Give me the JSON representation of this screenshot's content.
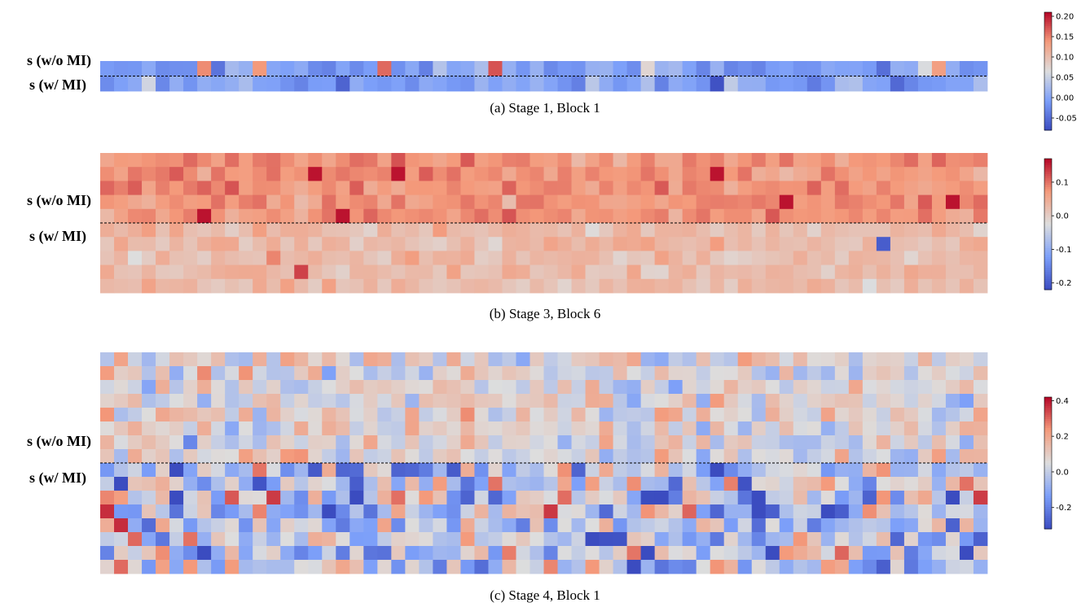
{
  "chart_data": [
    {
      "type": "heatmap",
      "panel": "a",
      "caption": "(a) Stage 1, Block 1",
      "row_labels": [
        "s (w/o MI)",
        "s (w/ MI)"
      ],
      "rows_top": 1,
      "rows_bottom": 1,
      "columns": 64,
      "colorbar": {
        "vmin": -0.08,
        "vmax": 0.21,
        "ticks": [
          -0.05,
          0.0,
          0.05,
          0.1,
          0.15,
          0.2
        ],
        "tick_labels": [
          "-0.05",
          "0.00",
          "0.05",
          "0.10",
          "0.15",
          "0.20"
        ]
      },
      "value_range": {
        "min": -0.07,
        "max": 0.2,
        "bias": 0.0,
        "spread": 0.022,
        "hot_count": 6,
        "seed": 11
      },
      "divider": "dashed line between the two rows"
    },
    {
      "type": "heatmap",
      "panel": "b",
      "caption": "(b) Stage 3, Block 6",
      "row_labels": [
        "s (w/o MI)",
        "s (w/ MI)"
      ],
      "rows_top": 5,
      "rows_bottom": 5,
      "columns": 64,
      "colorbar": {
        "vmin": -0.22,
        "vmax": 0.17,
        "ticks": [
          -0.2,
          -0.1,
          0.0,
          0.1
        ],
        "tick_labels": [
          "-0.2",
          "-0.1",
          "0.0",
          "0.1"
        ]
      },
      "value_range": {
        "top_mean": 0.075,
        "bottom_mean": 0.025,
        "spread": 0.018,
        "seed": 23
      },
      "divider": "dashed line between the two row groups"
    },
    {
      "type": "heatmap",
      "panel": "c",
      "caption": "(c) Stage 4, Block 1",
      "row_labels": [
        "s (w/o MI)",
        "s (w/ MI)"
      ],
      "rows_top": 8,
      "rows_bottom": 8,
      "columns": 64,
      "colorbar": {
        "vmin": -0.32,
        "vmax": 0.42,
        "ticks": [
          -0.2,
          0.0,
          0.2,
          0.4
        ],
        "tick_labels": [
          "-0.2",
          "0.0",
          "0.2",
          "0.4"
        ]
      },
      "value_range": {
        "top_mean": 0.06,
        "bottom_mean": 0.0,
        "top_spread": 0.08,
        "bottom_spread": 0.16,
        "seed": 37
      },
      "divider": "dashed line between the two row groups"
    }
  ]
}
